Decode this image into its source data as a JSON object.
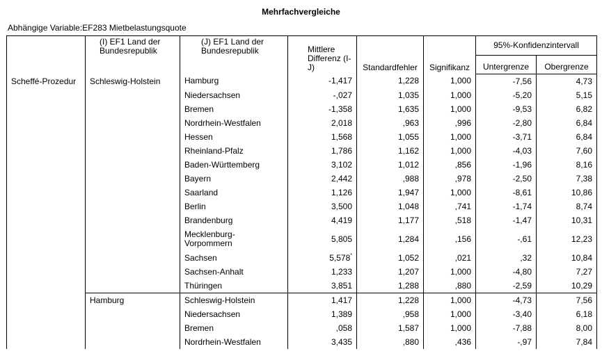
{
  "title": "Mehrfachvergleiche",
  "subtitle": "Abhängige Variable:EF283  Mietbelastungsquote",
  "table": {
    "headers": {
      "i": "(I) EF1 Land der Bundesrepublik",
      "j": "(J) EF1 Land der Bundesrepublik",
      "diff": "Mittlere Differenz (I-J)",
      "se": "Standardfehler",
      "sig": "Signifikanz",
      "ci": "95%-Konfidenzintervall",
      "lower": "Untergrenze",
      "upper": "Obergrenze"
    },
    "method": "Scheffé-Prozedur",
    "groups": [
      {
        "i": "Schleswig-Holstein",
        "rows": [
          {
            "j": "Hamburg",
            "diff": "-1,417",
            "se": "1,228",
            "sig": "1,000",
            "lower": "-7,56",
            "upper": "4,73"
          },
          {
            "j": "Niedersachsen",
            "diff": "-,027",
            "se": "1,035",
            "sig": "1,000",
            "lower": "-5,20",
            "upper": "5,15"
          },
          {
            "j": "Bremen",
            "diff": "-1,358",
            "se": "1,635",
            "sig": "1,000",
            "lower": "-9,53",
            "upper": "6,82"
          },
          {
            "j": "Nordrhein-Westfalen",
            "diff": "2,018",
            "se": ",963",
            "sig": ",996",
            "lower": "-2,80",
            "upper": "6,84"
          },
          {
            "j": "Hessen",
            "diff": "1,568",
            "se": "1,055",
            "sig": "1,000",
            "lower": "-3,71",
            "upper": "6,84"
          },
          {
            "j": "Rheinland-Pfalz",
            "diff": "1,786",
            "se": "1,162",
            "sig": "1,000",
            "lower": "-4,03",
            "upper": "7,60"
          },
          {
            "j": "Baden-Württemberg",
            "diff": "3,102",
            "se": "1,012",
            "sig": ",856",
            "lower": "-1,96",
            "upper": "8,16"
          },
          {
            "j": "Bayern",
            "diff": "2,442",
            "se": ",988",
            "sig": ",978",
            "lower": "-2,50",
            "upper": "7,38"
          },
          {
            "j": "Saarland",
            "diff": "1,126",
            "se": "1,947",
            "sig": "1,000",
            "lower": "-8,61",
            "upper": "10,86"
          },
          {
            "j": "Berlin",
            "diff": "3,500",
            "se": "1,048",
            "sig": ",741",
            "lower": "-1,74",
            "upper": "8,74"
          },
          {
            "j": "Brandenburg",
            "diff": "4,419",
            "se": "1,177",
            "sig": ",518",
            "lower": "-1,47",
            "upper": "10,31"
          },
          {
            "j": "Mecklenburg-Vorpommern",
            "diff": "5,805",
            "se": "1,284",
            "sig": ",156",
            "lower": "-,61",
            "upper": "12,23"
          },
          {
            "j": "Sachsen",
            "diff": "5,578",
            "diff_mark": "*",
            "se": "1,052",
            "sig": ",021",
            "lower": ",32",
            "upper": "10,84"
          },
          {
            "j": "Sachsen-Anhalt",
            "diff": "1,233",
            "se": "1,207",
            "sig": "1,000",
            "lower": "-4,80",
            "upper": "7,27"
          },
          {
            "j": "Thüringen",
            "diff": "3,851",
            "se": "1,288",
            "sig": ",880",
            "lower": "-2,59",
            "upper": "10,29"
          }
        ]
      },
      {
        "i": "Hamburg",
        "rows": [
          {
            "j": "Schleswig-Holstein",
            "diff": "1,417",
            "se": "1,228",
            "sig": "1,000",
            "lower": "-4,73",
            "upper": "7,56"
          },
          {
            "j": "Niedersachsen",
            "diff": "1,389",
            "se": ",958",
            "sig": "1,000",
            "lower": "-3,40",
            "upper": "6,18"
          },
          {
            "j": "Bremen",
            "diff": ",058",
            "se": "1,587",
            "sig": "1,000",
            "lower": "-7,88",
            "upper": "8,00"
          },
          {
            "j": "Nordrhein-Westfalen",
            "diff": "3,435",
            "se": ",880",
            "sig": ",436",
            "lower": "-,97",
            "upper": "7,84"
          }
        ]
      }
    ]
  }
}
